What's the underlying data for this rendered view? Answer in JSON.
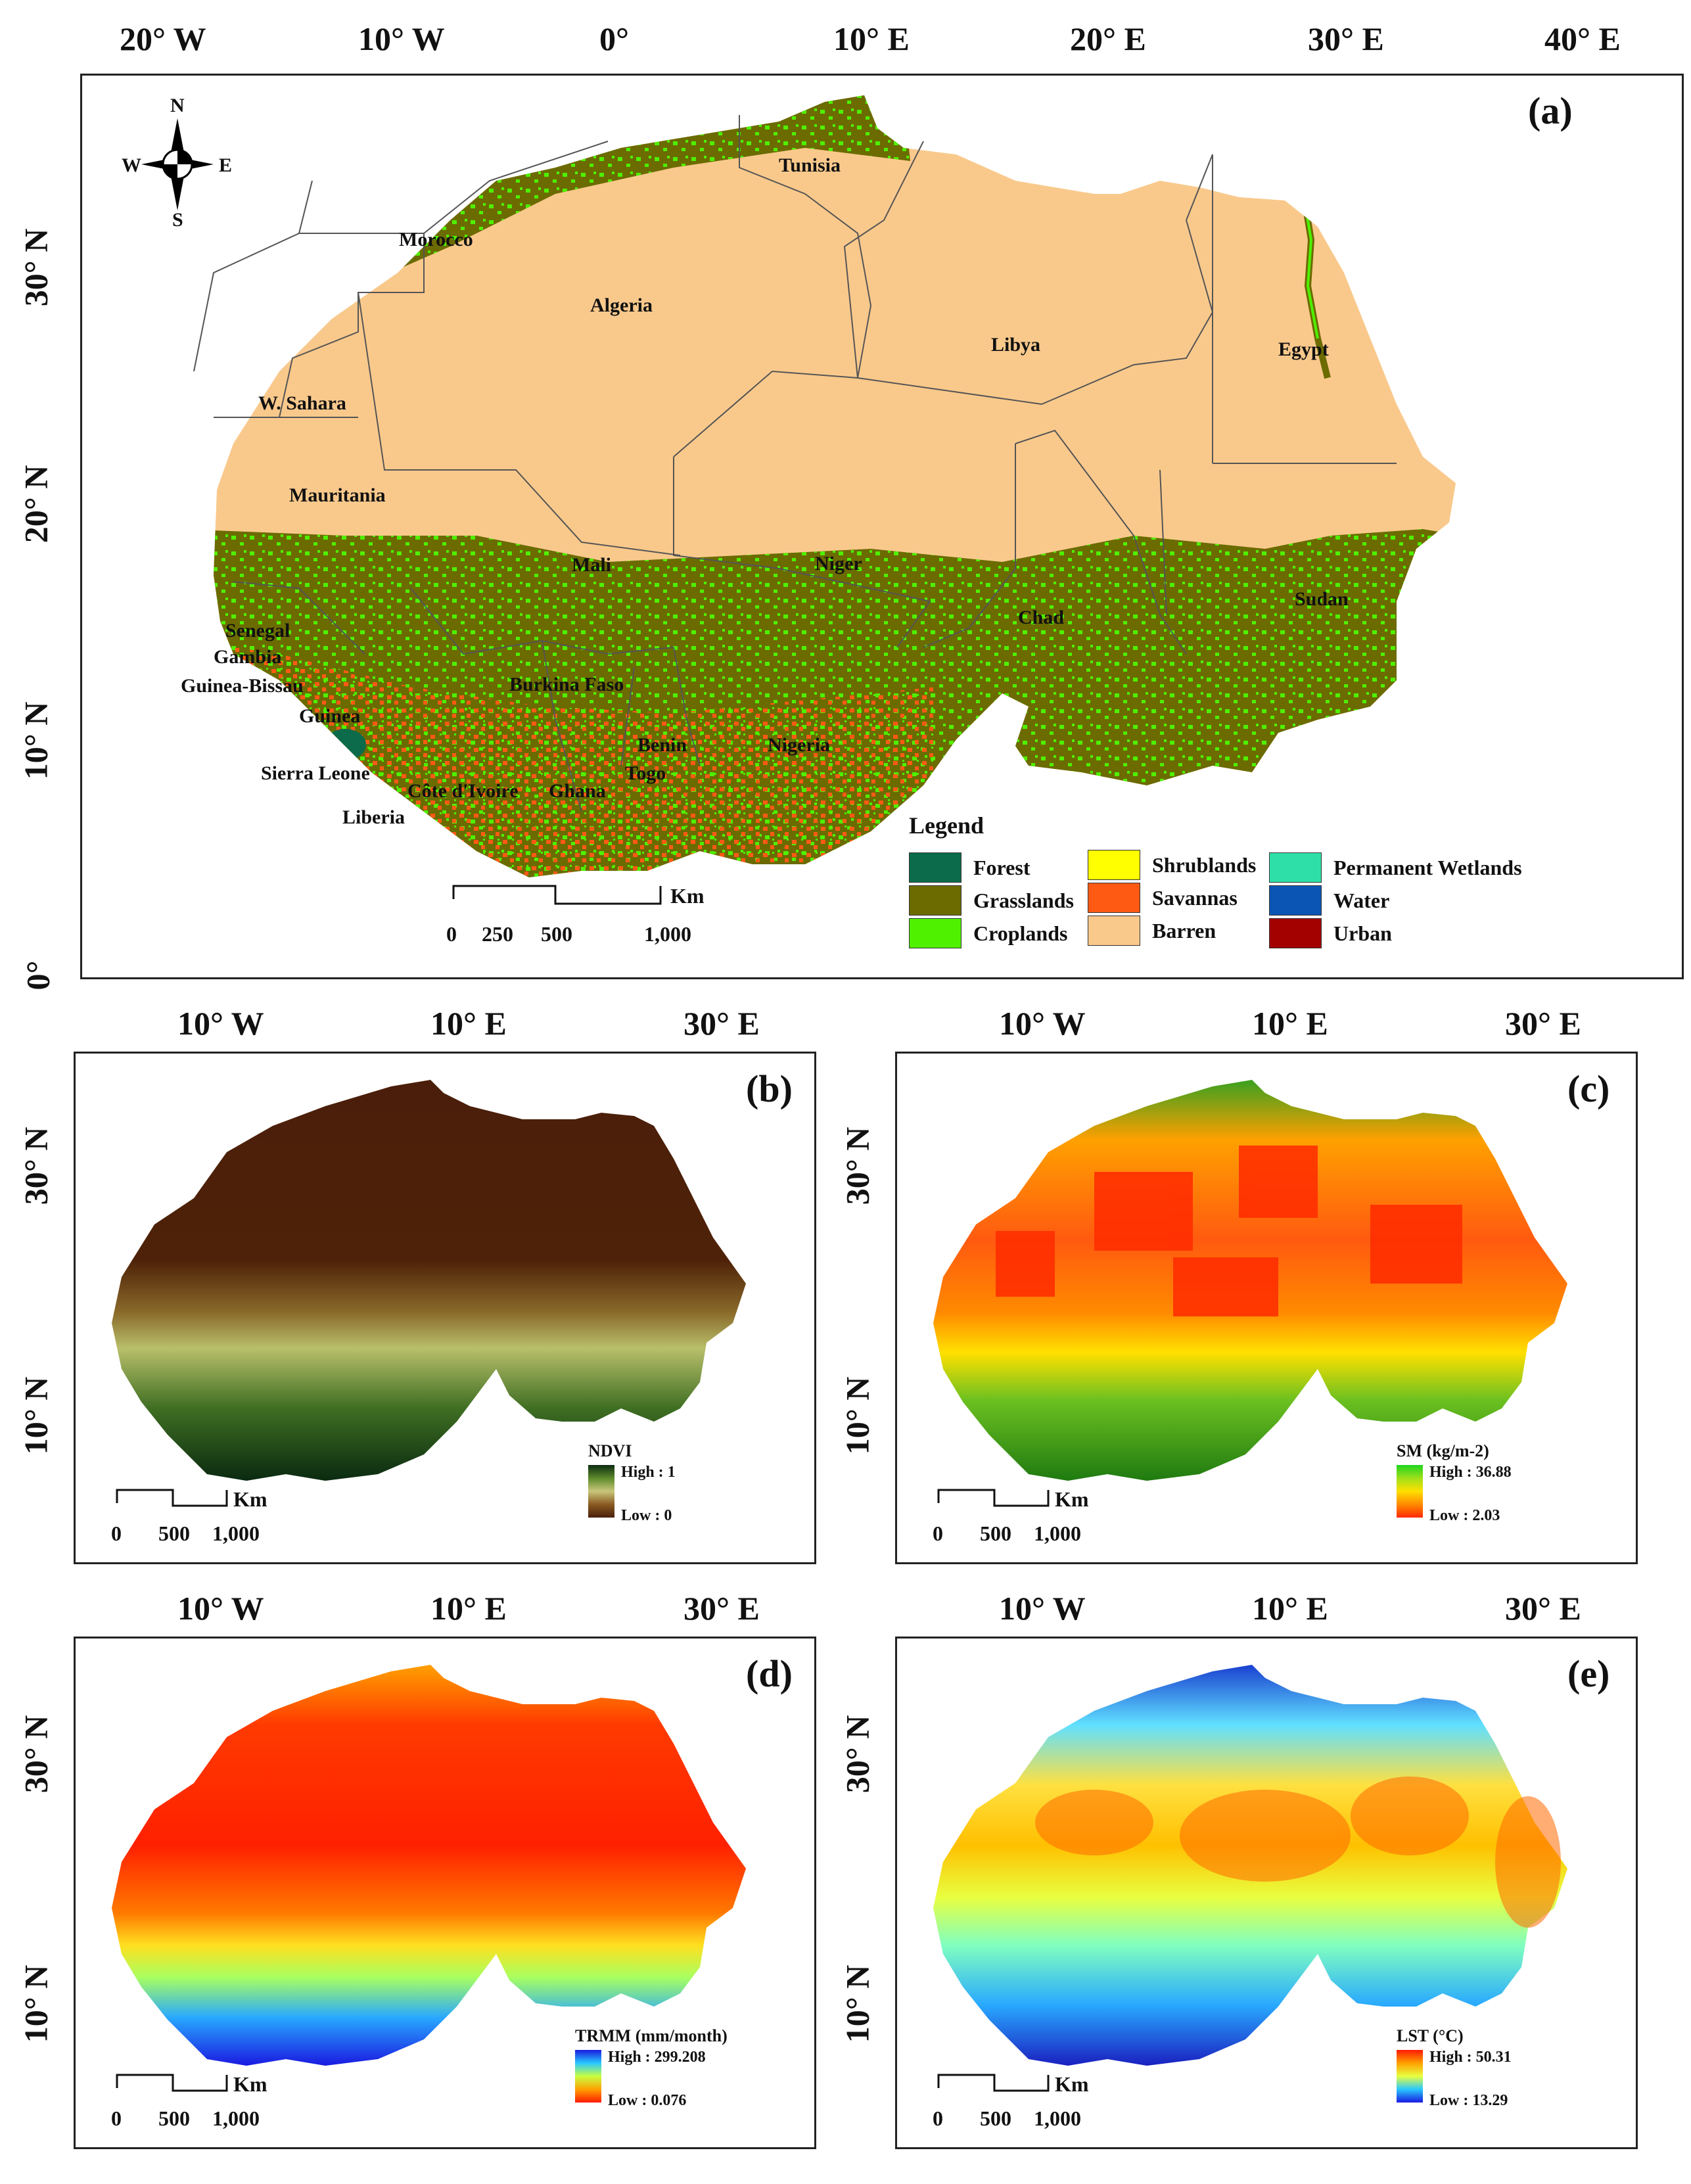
{
  "colors": {
    "barren": "#f9c98c",
    "grasslands": "#6b6b00",
    "croplands": "#4ff000",
    "forest": "#0c6b4a",
    "shrublands": "#ffff00",
    "savannas": "#ff5a14",
    "wetlands": "#2ee0a8",
    "water": "#0b55b5",
    "urban": "#a30000",
    "border": "#555555"
  },
  "panel_a": {
    "label": "(a)",
    "x_ticks": [
      "20° W",
      "10° W",
      "0°",
      "10° E",
      "20° E",
      "30° E",
      "40° E"
    ],
    "y_ticks": [
      "30° N",
      "20° N",
      "10° N",
      "0°"
    ],
    "north_arrow": {
      "n": "N",
      "s": "S",
      "e": "E",
      "w": "W"
    },
    "countries": [
      "Tunisia",
      "Morocco",
      "Algeria",
      "Libya",
      "Egypt",
      "W. Sahara",
      "Mauritania",
      "Mali",
      "Niger",
      "Chad",
      "Sudan",
      "Senegal",
      "Gambia",
      "Guinea-Bissau",
      "Guinea",
      "Burkina Faso",
      "Benin",
      "Togo",
      "Nigeria",
      "Sierra Leone",
      "Côte d'Ivoire",
      "Ghana",
      "Liberia"
    ],
    "scalebar": {
      "unit": "Km",
      "labels": [
        "0",
        "250",
        "500",
        "1,000"
      ]
    },
    "legend": {
      "title": "Legend",
      "items": [
        {
          "label": "Forest",
          "color": "#0c6b4a"
        },
        {
          "label": "Grasslands",
          "color": "#6b6b00"
        },
        {
          "label": "Croplands",
          "color": "#4ff000"
        },
        {
          "label": "Shrublands",
          "color": "#ffff00"
        },
        {
          "label": "Savannas",
          "color": "#ff5a14"
        },
        {
          "label": "Barren",
          "color": "#f9c98c"
        },
        {
          "label": "Permanent Wetlands",
          "color": "#2ee0a8"
        },
        {
          "label": "Water",
          "color": "#0b55b5"
        },
        {
          "label": "Urban",
          "color": "#a30000"
        }
      ]
    }
  },
  "panel_b": {
    "label": "(b)",
    "x_ticks": [
      "10° W",
      "10° E",
      "30° E"
    ],
    "y_ticks": [
      "30° N",
      "10° N"
    ],
    "legend": {
      "title": "NDVI",
      "high": "High : 1",
      "low": "Low : 0",
      "colors": [
        "#0b2a10",
        "#5c8a2a",
        "#c9c77a",
        "#8a5a22",
        "#4a1e0a"
      ]
    },
    "scalebar": {
      "unit": "Km",
      "labels": [
        "0",
        "500",
        "1,000"
      ]
    }
  },
  "panel_c": {
    "label": "(c)",
    "x_ticks": [
      "10° W",
      "10° E",
      "30° E"
    ],
    "y_ticks": [
      "30° N",
      "10° N"
    ],
    "legend": {
      "title": "SM (kg/m-2)",
      "high": "High : 36.88",
      "low": "Low : 2.03",
      "colors": [
        "#1fd41f",
        "#9ee01a",
        "#ffe000",
        "#ff8a00",
        "#ff2a00"
      ]
    },
    "scalebar": {
      "unit": "Km",
      "labels": [
        "0",
        "500",
        "1,000"
      ]
    }
  },
  "panel_d": {
    "label": "(d)",
    "x_ticks": [
      "10° W",
      "10° E",
      "30° E"
    ],
    "y_ticks": [
      "30° N",
      "10° N"
    ],
    "legend": {
      "title": "TRMM (mm/month)",
      "high": "High : 299.208",
      "low": "Low : 0.076",
      "colors": [
        "#1a1ae0",
        "#28c8ff",
        "#c8ff40",
        "#ffa000",
        "#ff1a00"
      ]
    },
    "scalebar": {
      "unit": "Km",
      "labels": [
        "0",
        "500",
        "1,000"
      ]
    }
  },
  "panel_e": {
    "label": "(e)",
    "x_ticks": [
      "10° W",
      "10° E",
      "30° E"
    ],
    "y_ticks": [
      "30° N",
      "10° N"
    ],
    "legend": {
      "title": "LST (°C)",
      "high": "High : 50.31",
      "low": "Low : 13.29",
      "colors": [
        "#ff1a00",
        "#ffa000",
        "#e8ff40",
        "#28c8ff",
        "#1a1ae0"
      ]
    },
    "scalebar": {
      "unit": "Km",
      "labels": [
        "0",
        "500",
        "1,000"
      ]
    }
  }
}
